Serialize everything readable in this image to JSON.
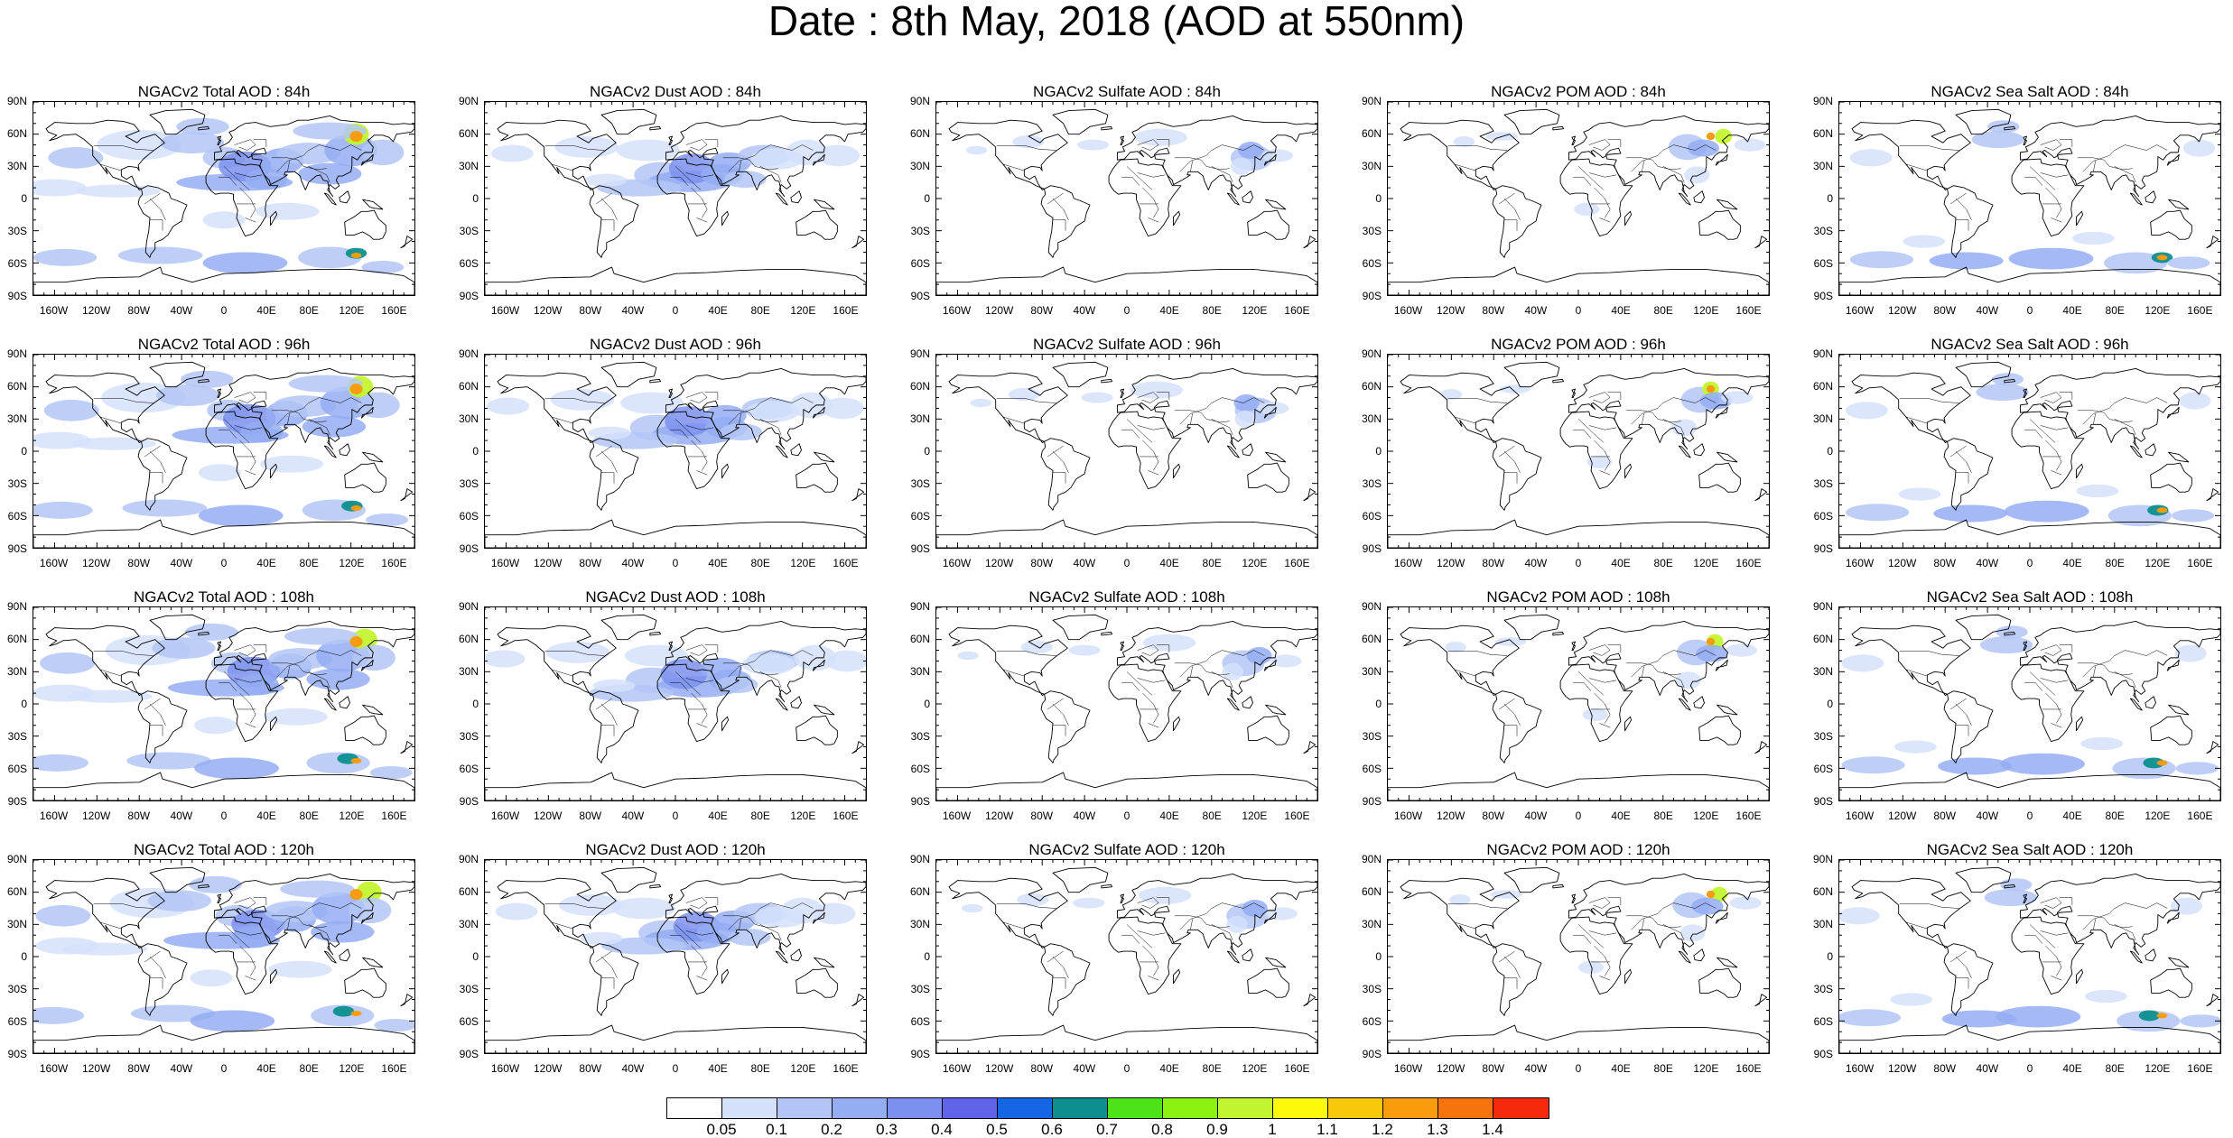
{
  "title": "Date : 8th May, 2018 (AOD at 550nm)",
  "lat_labels": [
    "90N",
    "60N",
    "30N",
    "0",
    "30S",
    "60S",
    "90S"
  ],
  "lon_labels": [
    "160W",
    "120W",
    "80W",
    "40W",
    "0",
    "40E",
    "80E",
    "120E",
    "160E"
  ],
  "species": [
    "total",
    "dust",
    "sulfate",
    "pom",
    "seasalt"
  ],
  "hours": [
    "84h",
    "96h",
    "108h",
    "120h"
  ],
  "panels": [
    {
      "title": "NGACv2 Total AOD : 84h",
      "species": "total"
    },
    {
      "title": "NGACv2 Dust AOD : 84h",
      "species": "dust"
    },
    {
      "title": "NGACv2 Sulfate AOD : 84h",
      "species": "sulfate"
    },
    {
      "title": "NGACv2 POM AOD : 84h",
      "species": "pom"
    },
    {
      "title": "NGACv2 Sea Salt AOD : 84h",
      "species": "seasalt"
    },
    {
      "title": "NGACv2 Total AOD : 96h",
      "species": "total"
    },
    {
      "title": "NGACv2 Dust AOD : 96h",
      "species": "dust"
    },
    {
      "title": "NGACv2 Sulfate AOD : 96h",
      "species": "sulfate"
    },
    {
      "title": "NGACv2 POM AOD : 96h",
      "species": "pom"
    },
    {
      "title": "NGACv2 Sea Salt AOD : 96h",
      "species": "seasalt"
    },
    {
      "title": "NGACv2 Total AOD : 108h",
      "species": "total"
    },
    {
      "title": "NGACv2 Dust AOD : 108h",
      "species": "dust"
    },
    {
      "title": "NGACv2 Sulfate AOD : 108h",
      "species": "sulfate"
    },
    {
      "title": "NGACv2 POM AOD : 108h",
      "species": "pom"
    },
    {
      "title": "NGACv2 Sea Salt AOD : 108h",
      "species": "seasalt"
    },
    {
      "title": "NGACv2 Total AOD : 120h",
      "species": "total"
    },
    {
      "title": "NGACv2 Dust AOD : 120h",
      "species": "dust"
    },
    {
      "title": "NGACv2 Sulfate AOD : 120h",
      "species": "sulfate"
    },
    {
      "title": "NGACv2 POM AOD : 120h",
      "species": "pom"
    },
    {
      "title": "NGACv2 Sea Salt  AOD : 120h",
      "species": "seasalt"
    }
  ],
  "colorbar": {
    "labels": [
      "0.05",
      "0.1",
      "0.2",
      "0.3",
      "0.4",
      "0.5",
      "0.6",
      "0.7",
      "0.8",
      "0.9",
      "1",
      "1.1",
      "1.2",
      "1.3",
      "1.4"
    ],
    "colors": [
      "#ffffff",
      "#d5e0fb",
      "#b3c5f6",
      "#94adf3",
      "#7c90ef",
      "#6064e9",
      "#1566e5",
      "#0c8f8e",
      "#4ee21a",
      "#8bf20e",
      "#c3f431",
      "#fafa0a",
      "#f9c80a",
      "#f89c0d",
      "#f6730e",
      "#f52a0d"
    ]
  }
}
